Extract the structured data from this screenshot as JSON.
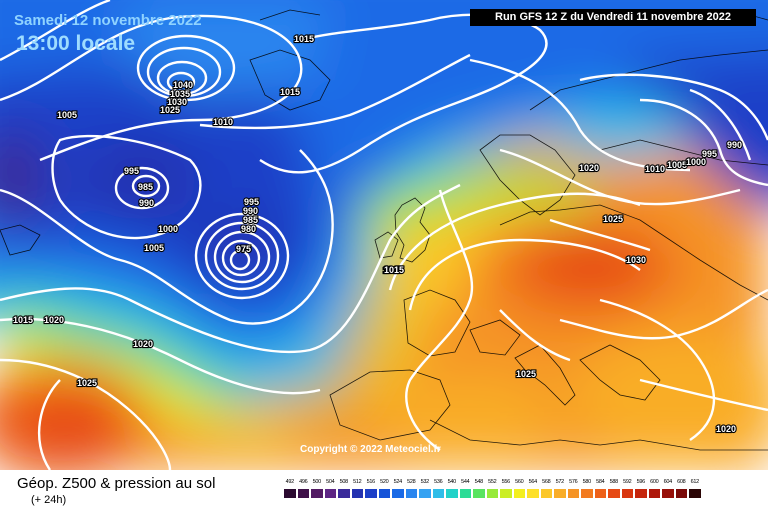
{
  "header": {
    "date": "Samedi 12 novembre 2022",
    "time": "13:00 locale",
    "run": "Run GFS 12 Z du Vendredi 11 novembre 2022"
  },
  "copyright": "Copyright © 2022 Meteociel.fr",
  "footer": {
    "title": "Géop. Z500 & pression au sol",
    "subtitle": "(+ 24h)"
  },
  "legend": {
    "labels": [
      "492",
      "496",
      "500",
      "504",
      "508",
      "512",
      "516",
      "520",
      "524",
      "528",
      "532",
      "536",
      "540",
      "544",
      "548",
      "552",
      "556",
      "560",
      "564",
      "568",
      "572",
      "576",
      "580",
      "584",
      "588",
      "592",
      "596",
      "600",
      "604",
      "608",
      "612"
    ],
    "colors": [
      "#2b0a30",
      "#3e1048",
      "#521a63",
      "#5d2584",
      "#3a2a9a",
      "#2432b0",
      "#1c3fc8",
      "#1553d8",
      "#1a6ae6",
      "#2a86ef",
      "#35a2f2",
      "#2fbde8",
      "#22d2c8",
      "#2bdc96",
      "#58e460",
      "#96ea3a",
      "#cbee25",
      "#f3ef20",
      "#fde02a",
      "#fbc72a",
      "#f9ad28",
      "#f59425",
      "#f27a1f",
      "#ee6119",
      "#e64914",
      "#d8360f",
      "#c6250c",
      "#ae170a",
      "#961009",
      "#7a0a08",
      "#2a0505"
    ]
  },
  "isobar_labels": [
    {
      "id": "1015-a",
      "text": "1015"
    },
    {
      "id": "1015-b",
      "text": "1015"
    },
    {
      "id": "1040",
      "text": "1040"
    },
    {
      "id": "1035",
      "text": "1035"
    },
    {
      "id": "1030-a",
      "text": "1030"
    },
    {
      "id": "1025-a",
      "text": "1025"
    },
    {
      "id": "1010-a",
      "text": "1010"
    },
    {
      "id": "1005-a",
      "text": "1005"
    },
    {
      "id": "995-a",
      "text": "995"
    },
    {
      "id": "985-a",
      "text": "985"
    },
    {
      "id": "990-a",
      "text": "990"
    },
    {
      "id": "1000-a",
      "text": "1000"
    },
    {
      "id": "1005-b",
      "text": "1005"
    },
    {
      "id": "995-b",
      "text": "995"
    },
    {
      "id": "990-b",
      "text": "990"
    },
    {
      "id": "985-b",
      "text": "985"
    },
    {
      "id": "980-a",
      "text": "980"
    },
    {
      "id": "975-a",
      "text": "975"
    },
    {
      "id": "1015-c",
      "text": "1015"
    },
    {
      "id": "1015-d",
      "text": "1015"
    },
    {
      "id": "1020-a",
      "text": "1020"
    },
    {
      "id": "1020-b",
      "text": "1020"
    },
    {
      "id": "1025-b",
      "text": "1025"
    },
    {
      "id": "1020-c",
      "text": "1020"
    },
    {
      "id": "1025-c",
      "text": "1025"
    },
    {
      "id": "1030-b",
      "text": "1030"
    },
    {
      "id": "1010-b",
      "text": "1010"
    },
    {
      "id": "1005-c",
      "text": "1005"
    },
    {
      "id": "1000-b",
      "text": "1000"
    },
    {
      "id": "995-c",
      "text": "995"
    },
    {
      "id": "990-c",
      "text": "990"
    },
    {
      "id": "1025-d",
      "text": "1025"
    },
    {
      "id": "1020-d",
      "text": "1020"
    },
    {
      "id": "1015-e",
      "text": "1015"
    }
  ]
}
